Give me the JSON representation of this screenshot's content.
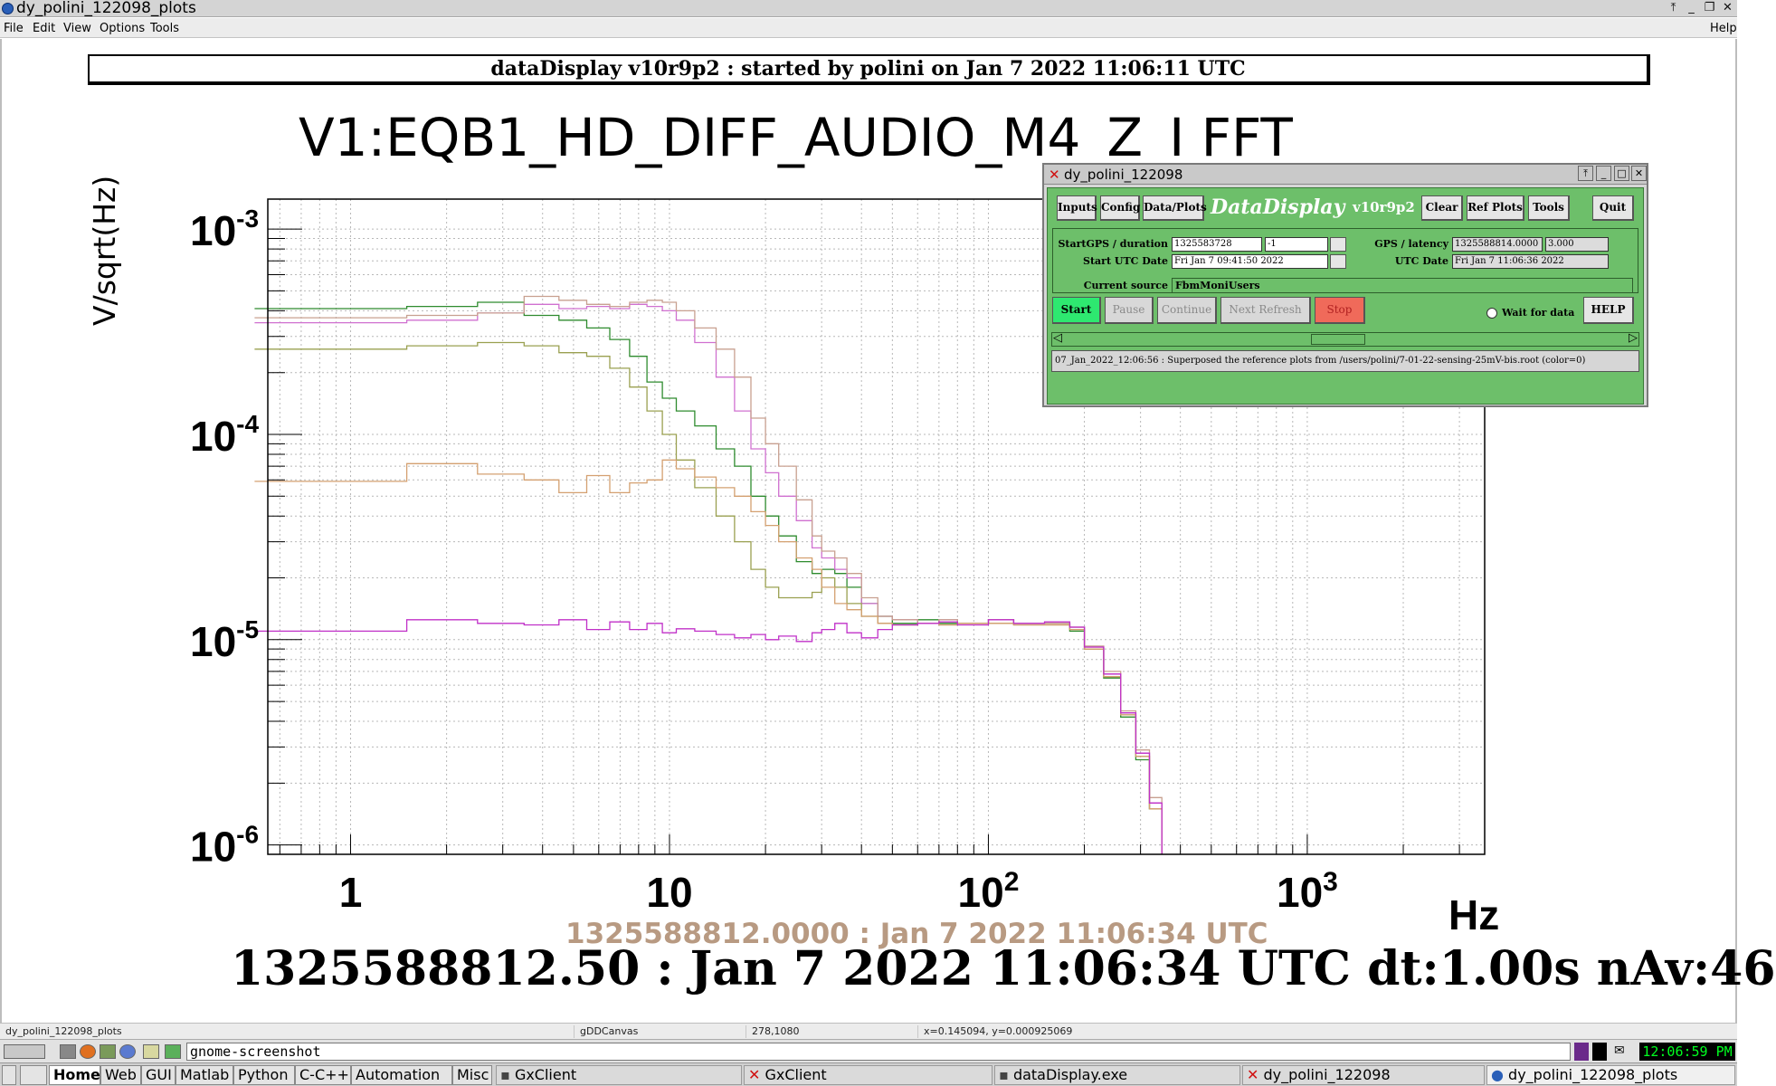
{
  "window": {
    "title": "dy_polini_122098_plots",
    "controls": [
      "⤒",
      "_",
      "❐",
      "✕"
    ]
  },
  "menu": {
    "file": "File",
    "edit": "Edit",
    "view": "View",
    "options": "Options",
    "tools": "Tools",
    "help": "Help"
  },
  "canvas": {
    "banner": "dataDisplay v10r9p2 : started by polini on Jan  7 2022 11:06:11 UTC",
    "title": "V1:EQB1_HD_DIFF_AUDIO_M4_Z_I    FFT",
    "ylabel": "V/sqrt(Hz)",
    "xunit": "Hz",
    "ref_timestamp": "1325588812.0000 : Jan  7 2022 11:06:34 UTC",
    "main_timestamp": "1325588812.50 : Jan  7 2022 11:06:34 UTC dt:1.00s nAv:46"
  },
  "chart_data": {
    "type": "line",
    "xscale": "log",
    "yscale": "log",
    "xlim": [
      0.55,
      3600
    ],
    "ylim": [
      9e-07,
      0.0014
    ],
    "xticks": [
      1,
      10,
      100,
      1000
    ],
    "xtick_labels": [
      {
        "base": "1",
        "exp": ""
      },
      {
        "base": "10",
        "exp": ""
      },
      {
        "base": "10",
        "exp": "2"
      },
      {
        "base": "10",
        "exp": "3"
      }
    ],
    "yticks": [
      0.001,
      0.0001,
      1e-05,
      1e-06
    ],
    "ytick_labels": [
      {
        "base": "10",
        "exp": "-3"
      },
      {
        "base": "10",
        "exp": "-4"
      },
      {
        "base": "10",
        "exp": "-5"
      },
      {
        "base": "10",
        "exp": "-6"
      }
    ],
    "grid": true,
    "series": [
      {
        "color": "#2e8b2e",
        "x": [
          0.5,
          1.5,
          2.5,
          3.5,
          4.5,
          5.5,
          6.5,
          7.5,
          8.5,
          9.5,
          10.5,
          12,
          14,
          16,
          18,
          20,
          22,
          25,
          28,
          30,
          33,
          36,
          40,
          45,
          50,
          60,
          70,
          80,
          100,
          120,
          150,
          180,
          200,
          230,
          260,
          290,
          320,
          350
        ],
        "y": [
          0.00041,
          0.00042,
          0.00044,
          0.00038,
          0.00036,
          0.00033,
          0.00029,
          0.00024,
          0.00018,
          0.00015,
          0.00013,
          0.00011,
          8.5e-05,
          7e-05,
          5e-05,
          4e-05,
          3.2e-05,
          2.4e-05,
          2.1e-05,
          2.2e-05,
          2.1e-05,
          1.8e-05,
          1.5e-05,
          1.3e-05,
          1.2e-05,
          1.25e-05,
          1.2e-05,
          1.2e-05,
          1.25e-05,
          1.2e-05,
          1.2e-05,
          1.1e-05,
          9e-06,
          6.5e-06,
          4.2e-06,
          2.6e-06,
          1.5e-06,
          9e-07
        ]
      },
      {
        "color": "#d070d0",
        "x": [
          0.5,
          1.5,
          2.5,
          3.5,
          4.5,
          5.5,
          6.5,
          7.5,
          8.5,
          9.5,
          10.5,
          12,
          14,
          16,
          18,
          20,
          22,
          25,
          28,
          30,
          33,
          36,
          40,
          45,
          50,
          60,
          70,
          80,
          100,
          120,
          150,
          180,
          200,
          230,
          260,
          290,
          320,
          350
        ],
        "y": [
          0.00035,
          0.00036,
          0.00039,
          0.00043,
          0.00041,
          0.00042,
          0.00041,
          0.00043,
          0.00042,
          0.0004,
          0.00036,
          0.00028,
          0.00019,
          0.00013,
          8.5e-05,
          6.5e-05,
          5e-05,
          3.8e-05,
          2.8e-05,
          2.5e-05,
          2.2e-05,
          2e-05,
          1.5e-05,
          1.3e-05,
          1.25e-05,
          1.2e-05,
          1.25e-05,
          1.2e-05,
          1.25e-05,
          1.2e-05,
          1.2e-05,
          1.15e-05,
          9.2e-06,
          6.8e-06,
          4.4e-06,
          2.8e-06,
          1.6e-06,
          9e-07
        ]
      },
      {
        "color": "#c8a090",
        "x": [
          0.5,
          1.5,
          2.5,
          3.5,
          4.5,
          5.5,
          6.5,
          7.5,
          8.5,
          9.5,
          10.5,
          12,
          14,
          16,
          18,
          20,
          22,
          25,
          28,
          30,
          33,
          36,
          40,
          45,
          50,
          60,
          70,
          80,
          100,
          120,
          150,
          180,
          200,
          230,
          260,
          290,
          320,
          350
        ],
        "y": [
          0.00037,
          0.00038,
          0.00039,
          0.00047,
          0.00045,
          0.00043,
          0.00042,
          0.00044,
          0.00045,
          0.00044,
          0.0004,
          0.00033,
          0.00026,
          0.00019,
          0.00012,
          9e-05,
          7e-05,
          4.8e-05,
          3.2e-05,
          2.7e-05,
          2.5e-05,
          2.1e-05,
          1.6e-05,
          1.3e-05,
          1.25e-05,
          1.2e-05,
          1.25e-05,
          1.2e-05,
          1.25e-05,
          1.2e-05,
          1.2e-05,
          1.15e-05,
          9.3e-06,
          7e-06,
          4.5e-06,
          2.9e-06,
          1.7e-06,
          9e-07
        ]
      },
      {
        "color": "#9aa050",
        "x": [
          0.5,
          1.5,
          2.5,
          3.5,
          4.5,
          5.5,
          6.5,
          7.5,
          8.5,
          9.5,
          10.5,
          12,
          14,
          16,
          18,
          20,
          22,
          25,
          28,
          30,
          33,
          36,
          40,
          45,
          50,
          60,
          70,
          80,
          100,
          120,
          150,
          180,
          200,
          230,
          260,
          290,
          320,
          350
        ],
        "y": [
          0.00026,
          0.00027,
          0.00028,
          0.00027,
          0.00025,
          0.00024,
          0.00021,
          0.00017,
          0.00013,
          0.0001,
          7.5e-05,
          5.5e-05,
          4e-05,
          3e-05,
          2.2e-05,
          1.8e-05,
          1.6e-05,
          1.6e-05,
          1.7e-05,
          2e-05,
          1.8e-05,
          1.5e-05,
          1.3e-05,
          1.2e-05,
          1.18e-05,
          1.2e-05,
          1.18e-05,
          1.2e-05,
          1.2e-05,
          1.18e-05,
          1.18e-05,
          1.12e-05,
          9e-06,
          6.6e-06,
          4.3e-06,
          2.7e-06,
          1.5e-06,
          9e-07
        ]
      },
      {
        "color": "#d4a070",
        "x": [
          0.5,
          1.5,
          2.5,
          3.5,
          4.5,
          5.5,
          6.5,
          7.5,
          8.5,
          9.5,
          10.5,
          12,
          14,
          16,
          18,
          20,
          22,
          25,
          28,
          30,
          33,
          36,
          40,
          45,
          50,
          60,
          70,
          80,
          100,
          120,
          150,
          180,
          200,
          230,
          260,
          290,
          320,
          350
        ],
        "y": [
          5.9e-05,
          7.2e-05,
          6.4e-05,
          6e-05,
          5.2e-05,
          6.3e-05,
          5.2e-05,
          5.8e-05,
          6e-05,
          7.5e-05,
          6.8e-05,
          6.2e-05,
          5.5e-05,
          5e-05,
          4.2e-05,
          3.6e-05,
          3e-05,
          2.5e-05,
          2.2e-05,
          1.8e-05,
          1.5e-05,
          1.4e-05,
          1.3e-05,
          1.2e-05,
          1.18e-05,
          1.2e-05,
          1.18e-05,
          1.2e-05,
          1.2e-05,
          1.18e-05,
          1.18e-05,
          1.12e-05,
          9e-06,
          6.6e-06,
          4.3e-06,
          2.7e-06,
          1.5e-06,
          9e-07
        ]
      },
      {
        "color": "#c030c8",
        "x": [
          0.5,
          1.5,
          2.5,
          3.5,
          4.5,
          5.5,
          6.5,
          7.5,
          8.5,
          9.5,
          10.5,
          12,
          14,
          16,
          18,
          20,
          22,
          25,
          28,
          30,
          33,
          36,
          40,
          45,
          50,
          60,
          70,
          80,
          100,
          120,
          150,
          180,
          200,
          230,
          260,
          290,
          320,
          350
        ],
        "y": [
          1.1e-05,
          1.25e-05,
          1.2e-05,
          1.18e-05,
          1.25e-05,
          1.12e-05,
          1.22e-05,
          1.12e-05,
          1.2e-05,
          1.08e-05,
          1.13e-05,
          1.1e-05,
          1.06e-05,
          1.02e-05,
          1.06e-05,
          1e-05,
          1.04e-05,
          9.8e-06,
          1.08e-05,
          1.12e-05,
          1.2e-05,
          1.08e-05,
          1.02e-05,
          1.12e-05,
          1.18e-05,
          1.2e-05,
          1.22e-05,
          1.18e-05,
          1.25e-05,
          1.2e-05,
          1.22e-05,
          1.15e-05,
          9.2e-06,
          6.8e-06,
          4.4e-06,
          2.8e-06,
          1.6e-06,
          9e-07
        ]
      }
    ]
  },
  "dd": {
    "title": "dy_polini_122098",
    "inputs": "Inputs",
    "config": "Config",
    "dataplots": "Data/Plots",
    "brand": "DataDisplay",
    "version": "v10r9p2",
    "clear": "Clear",
    "refplots": "Ref Plots",
    "tools": "Tools",
    "quit": "Quit",
    "startgps_label": "StartGPS / duration",
    "startgps": "1325583728",
    "duration": "-1",
    "start_utc_label": "Start UTC Date",
    "start_utc": "Fri Jan  7 09:41:50 2022",
    "gps_latency_label": "GPS / latency",
    "gps": "1325588814.0000",
    "latency": "3.000",
    "utc_label": "UTC Date",
    "utc": "Fri Jan  7 11:06:36 2022",
    "source_label": "Current source",
    "source": "FbmMoniUsers",
    "start": "Start",
    "pause": "Pause",
    "continue": "Continue",
    "next_refresh": "Next Refresh",
    "stop": "Stop",
    "wait": "Wait for data",
    "help": "HELP",
    "message": "07_Jan_2022_12:06:56 : Superposed the reference plots from /users/polini/7-01-22-sensing-25mV-bis.root (color=0)",
    "start_color": "#2ee870",
    "stop_color": "#f06a5a"
  },
  "status": {
    "window": "dy_polini_122098_plots",
    "canvas": "gDDCanvas",
    "pixel": "278,1080",
    "coords": "x=0.145094, y=0.000925069"
  },
  "taskbar": {
    "command": "gnome-screenshot",
    "clock": "12:06:59 PM",
    "tabs": [
      "Home",
      "Web",
      "GUI",
      "Matlab",
      "Python",
      "C-C++",
      "Automation",
      "Misc"
    ],
    "apps": [
      "GxClient",
      "GxClient",
      "dataDisplay.exe",
      "dy_polini_122098",
      "dy_polini_122098_plots"
    ]
  }
}
